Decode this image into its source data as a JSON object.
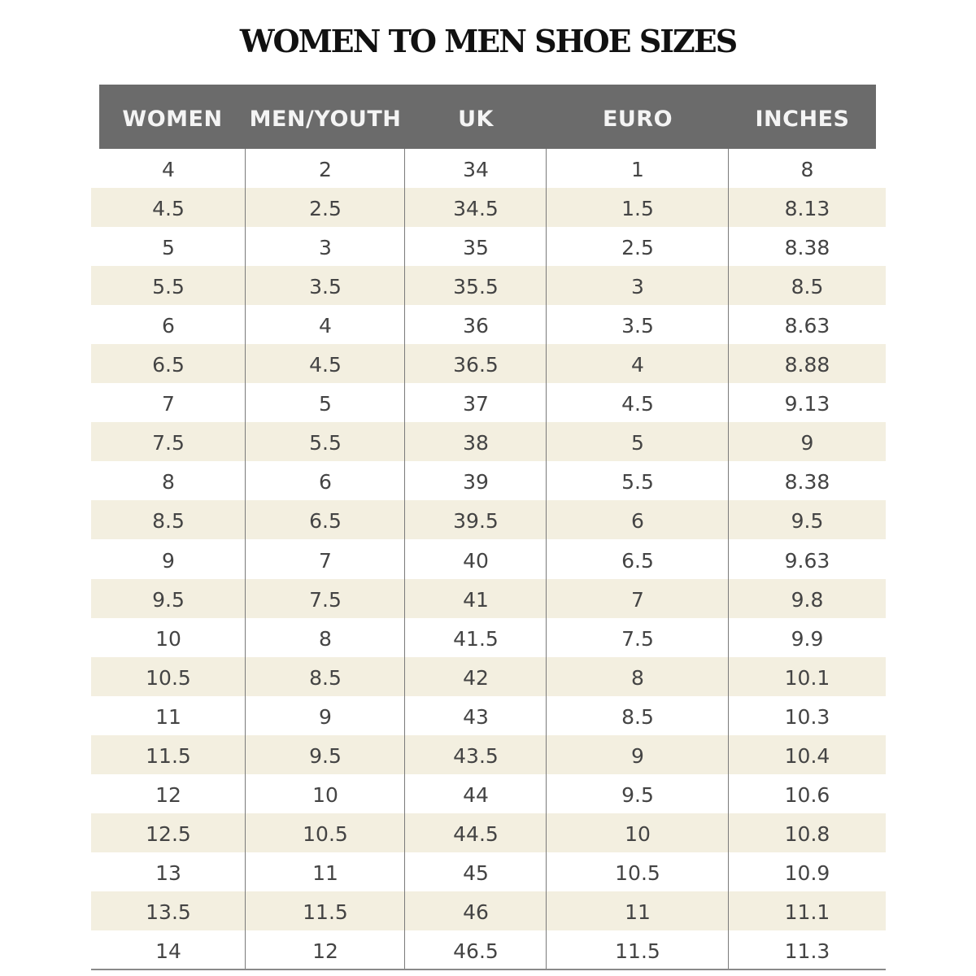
{
  "title": "WOMEN TO MEN SHOE SIZES",
  "columns": [
    "WOMEN",
    "MEN/YOUTH",
    "UK",
    "EURO",
    "INCHES"
  ],
  "rows": [
    [
      "4",
      "2",
      "34",
      "1",
      "8"
    ],
    [
      "4.5",
      "2.5",
      "34.5",
      "1.5",
      "8.13"
    ],
    [
      "5",
      "3",
      "35",
      "2.5",
      "8.38"
    ],
    [
      "5.5",
      "3.5",
      "35.5",
      "3",
      "8.5"
    ],
    [
      "6",
      "4",
      "36",
      "3.5",
      "8.63"
    ],
    [
      "6.5",
      "4.5",
      "36.5",
      "4",
      "8.88"
    ],
    [
      "7",
      "5",
      "37",
      "4.5",
      "9.13"
    ],
    [
      "7.5",
      "5.5",
      "38",
      "5",
      "9"
    ],
    [
      "8",
      "6",
      "39",
      "5.5",
      "8.38"
    ],
    [
      "8.5",
      "6.5",
      "39.5",
      "6",
      "9.5"
    ],
    [
      "9",
      "7",
      "40",
      "6.5",
      "9.63"
    ],
    [
      "9.5",
      "7.5",
      "41",
      "7",
      "9.8"
    ],
    [
      "10",
      "8",
      "41.5",
      "7.5",
      "9.9"
    ],
    [
      "10.5",
      "8.5",
      "42",
      "8",
      "10.1"
    ],
    [
      "11",
      "9",
      "43",
      "8.5",
      "10.3"
    ],
    [
      "11.5",
      "9.5",
      "43.5",
      "9",
      "10.4"
    ],
    [
      "12",
      "10",
      "44",
      "9.5",
      "10.6"
    ],
    [
      "12.5",
      "10.5",
      "44.5",
      "10",
      "10.8"
    ],
    [
      "13",
      "11",
      "45",
      "10.5",
      "10.9"
    ],
    [
      "13.5",
      "11.5",
      "46",
      "11",
      "11.1"
    ],
    [
      "14",
      "12",
      "46.5",
      "11.5",
      "11.3"
    ]
  ],
  "colors": {
    "header_bg": "#6b6b6b",
    "header_text": "#f4f4f4",
    "stripe": "#f3efe0",
    "cell_text": "#444444"
  }
}
